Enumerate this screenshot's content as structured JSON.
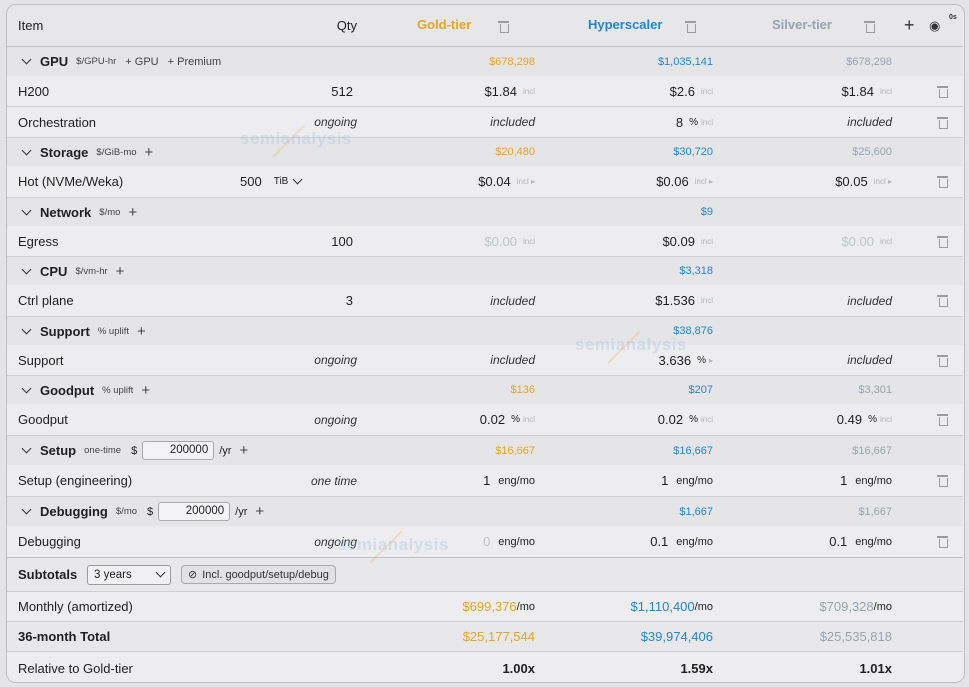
{
  "header": {
    "item_label": "Item",
    "qty_label": "Qty",
    "columns": [
      {
        "name": "Gold-tier",
        "color": "#e8a320"
      },
      {
        "name": "Hyperscaler",
        "color": "#1f86d1"
      },
      {
        "name": "Silver-tier",
        "color": "#9aa3ad"
      }
    ],
    "eye_badge": "0s"
  },
  "watermark": "semianalysis",
  "sections": {
    "gpu": {
      "title": "GPU",
      "unit": "$/GPU-hr",
      "add1": "+ GPU",
      "add2": "+ Premium",
      "totals": [
        "$678,298",
        "$1,035,141",
        "$678,298"
      ]
    },
    "h200": {
      "label": "H200",
      "qty": "512",
      "values": [
        "$1.84",
        "$2.6",
        "$1.84"
      ],
      "tag": "incl"
    },
    "orch": {
      "label": "Orchestration",
      "qty": "ongoing",
      "values": [
        "included",
        "8",
        "included"
      ],
      "pct": "%",
      "tag": "incl"
    },
    "storage": {
      "title": "Storage",
      "unit": "$/GiB-mo",
      "totals": [
        "$20,480",
        "$30,720",
        "$25,600"
      ]
    },
    "hot": {
      "label": "Hot (NVMe/Weka)",
      "qty": "500",
      "qty_unit": "TiB",
      "values": [
        "$0.04",
        "$0.06",
        "$0.05"
      ],
      "tag": "incl ▸"
    },
    "network": {
      "title": "Network",
      "unit": "$/mo",
      "totals": [
        "",
        "$9",
        ""
      ]
    },
    "egress": {
      "label": "Egress",
      "qty": "100",
      "values": [
        "$0.00",
        "$0.09",
        "$0.00"
      ],
      "tag": "incl"
    },
    "cpu": {
      "title": "CPU",
      "unit": "$/vm-hr",
      "totals": [
        "",
        "$3,318",
        ""
      ]
    },
    "ctrl": {
      "label": "Ctrl plane",
      "qty": "3",
      "values": [
        "included",
        "$1.536",
        "included"
      ],
      "tag": "incl"
    },
    "support": {
      "title": "Support",
      "unit": "% uplift",
      "totals": [
        "",
        "$38,876",
        ""
      ]
    },
    "support_item": {
      "label": "Support",
      "qty": "ongoing",
      "values": [
        "included",
        "3.636",
        "included"
      ],
      "pct": "%",
      "tag": "▸"
    },
    "goodput": {
      "title": "Goodput",
      "unit": "% uplift",
      "totals": [
        "$136",
        "$207",
        "$3,301"
      ]
    },
    "goodput_item": {
      "label": "Goodput",
      "qty": "ongoing",
      "values": [
        "0.02",
        "0.02",
        "0.49"
      ],
      "pct": "%",
      "tag": "incl"
    },
    "setup": {
      "title": "Setup",
      "unit": "one-time",
      "currency": "$",
      "amount": "200000",
      "per": "/yr",
      "totals": [
        "$16,667",
        "$16,667",
        "$16,667"
      ]
    },
    "setup_item": {
      "label": "Setup (engineering)",
      "qty": "one time",
      "values": [
        "1",
        "1",
        "1"
      ],
      "unit": "eng/mo"
    },
    "debug": {
      "title": "Debugging",
      "unit": "$/mo",
      "currency": "$",
      "amount": "200000",
      "per": "/yr",
      "totals": [
        "",
        "$1,667",
        "$1,667"
      ]
    },
    "debug_item": {
      "label": "Debugging",
      "qty": "ongoing",
      "values": [
        "0",
        "0.1",
        "0.1"
      ],
      "unit": "eng/mo"
    }
  },
  "subtotals": {
    "label": "Subtotals",
    "period": "3 years",
    "chip": "Incl. goodput/setup/debug",
    "monthly_label": "Monthly (amortized)",
    "monthly": [
      "$699,376",
      "$1,110,400",
      "$709,328"
    ],
    "per_mo": "/mo",
    "total_label": "36-month Total",
    "totals": [
      "$25,177,544",
      "$39,974,406",
      "$25,535,818"
    ],
    "relative_label": "Relative to Gold-tier",
    "relative": [
      "1.00x",
      "1.59x",
      "1.01x"
    ]
  }
}
